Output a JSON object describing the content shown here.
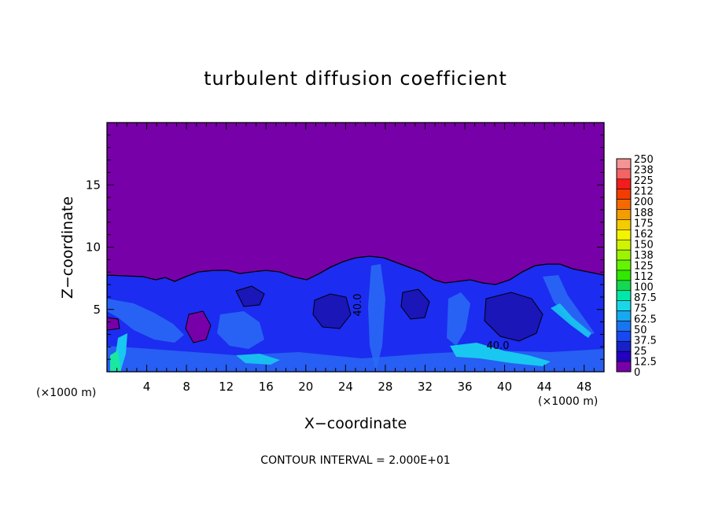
{
  "chart_data": {
    "type": "heatmap",
    "title": "turbulent diffusion coefficient",
    "xlabel": "X−coordinate",
    "ylabel": "Z−coordinate",
    "x_unit": "(×1000 m)",
    "z_unit": "(×1000 m)",
    "xlim": [
      0,
      50
    ],
    "ylim": [
      0,
      20
    ],
    "x_ticks": [
      4,
      8,
      12,
      16,
      20,
      24,
      28,
      32,
      36,
      40,
      44,
      48
    ],
    "y_ticks": [
      5,
      10,
      15
    ],
    "colorbar_levels": [
      "250",
      "238",
      "225",
      "212",
      "200",
      "188",
      "175",
      "162",
      "150",
      "138",
      "125",
      "112",
      "100",
      "87.5",
      "75",
      "62.5",
      "50",
      "37.5",
      "25",
      "12.5",
      "0"
    ],
    "colorbar_colors": [
      "#f49494",
      "#f46464",
      "#f41c1c",
      "#f43c00",
      "#f46a00",
      "#f49c00",
      "#f4cc00",
      "#f4f400",
      "#d0f400",
      "#9cf400",
      "#64f400",
      "#30e800",
      "#14d850",
      "#00e8a8",
      "#18d8e8",
      "#18a8f0",
      "#1874f0",
      "#1848f0",
      "#1820c8",
      "#2400c0",
      "#7800a8"
    ],
    "contour_labels": [
      "40.0",
      "40.0"
    ],
    "footnote": "CONTOUR INTERVAL = 2.000E+01"
  }
}
